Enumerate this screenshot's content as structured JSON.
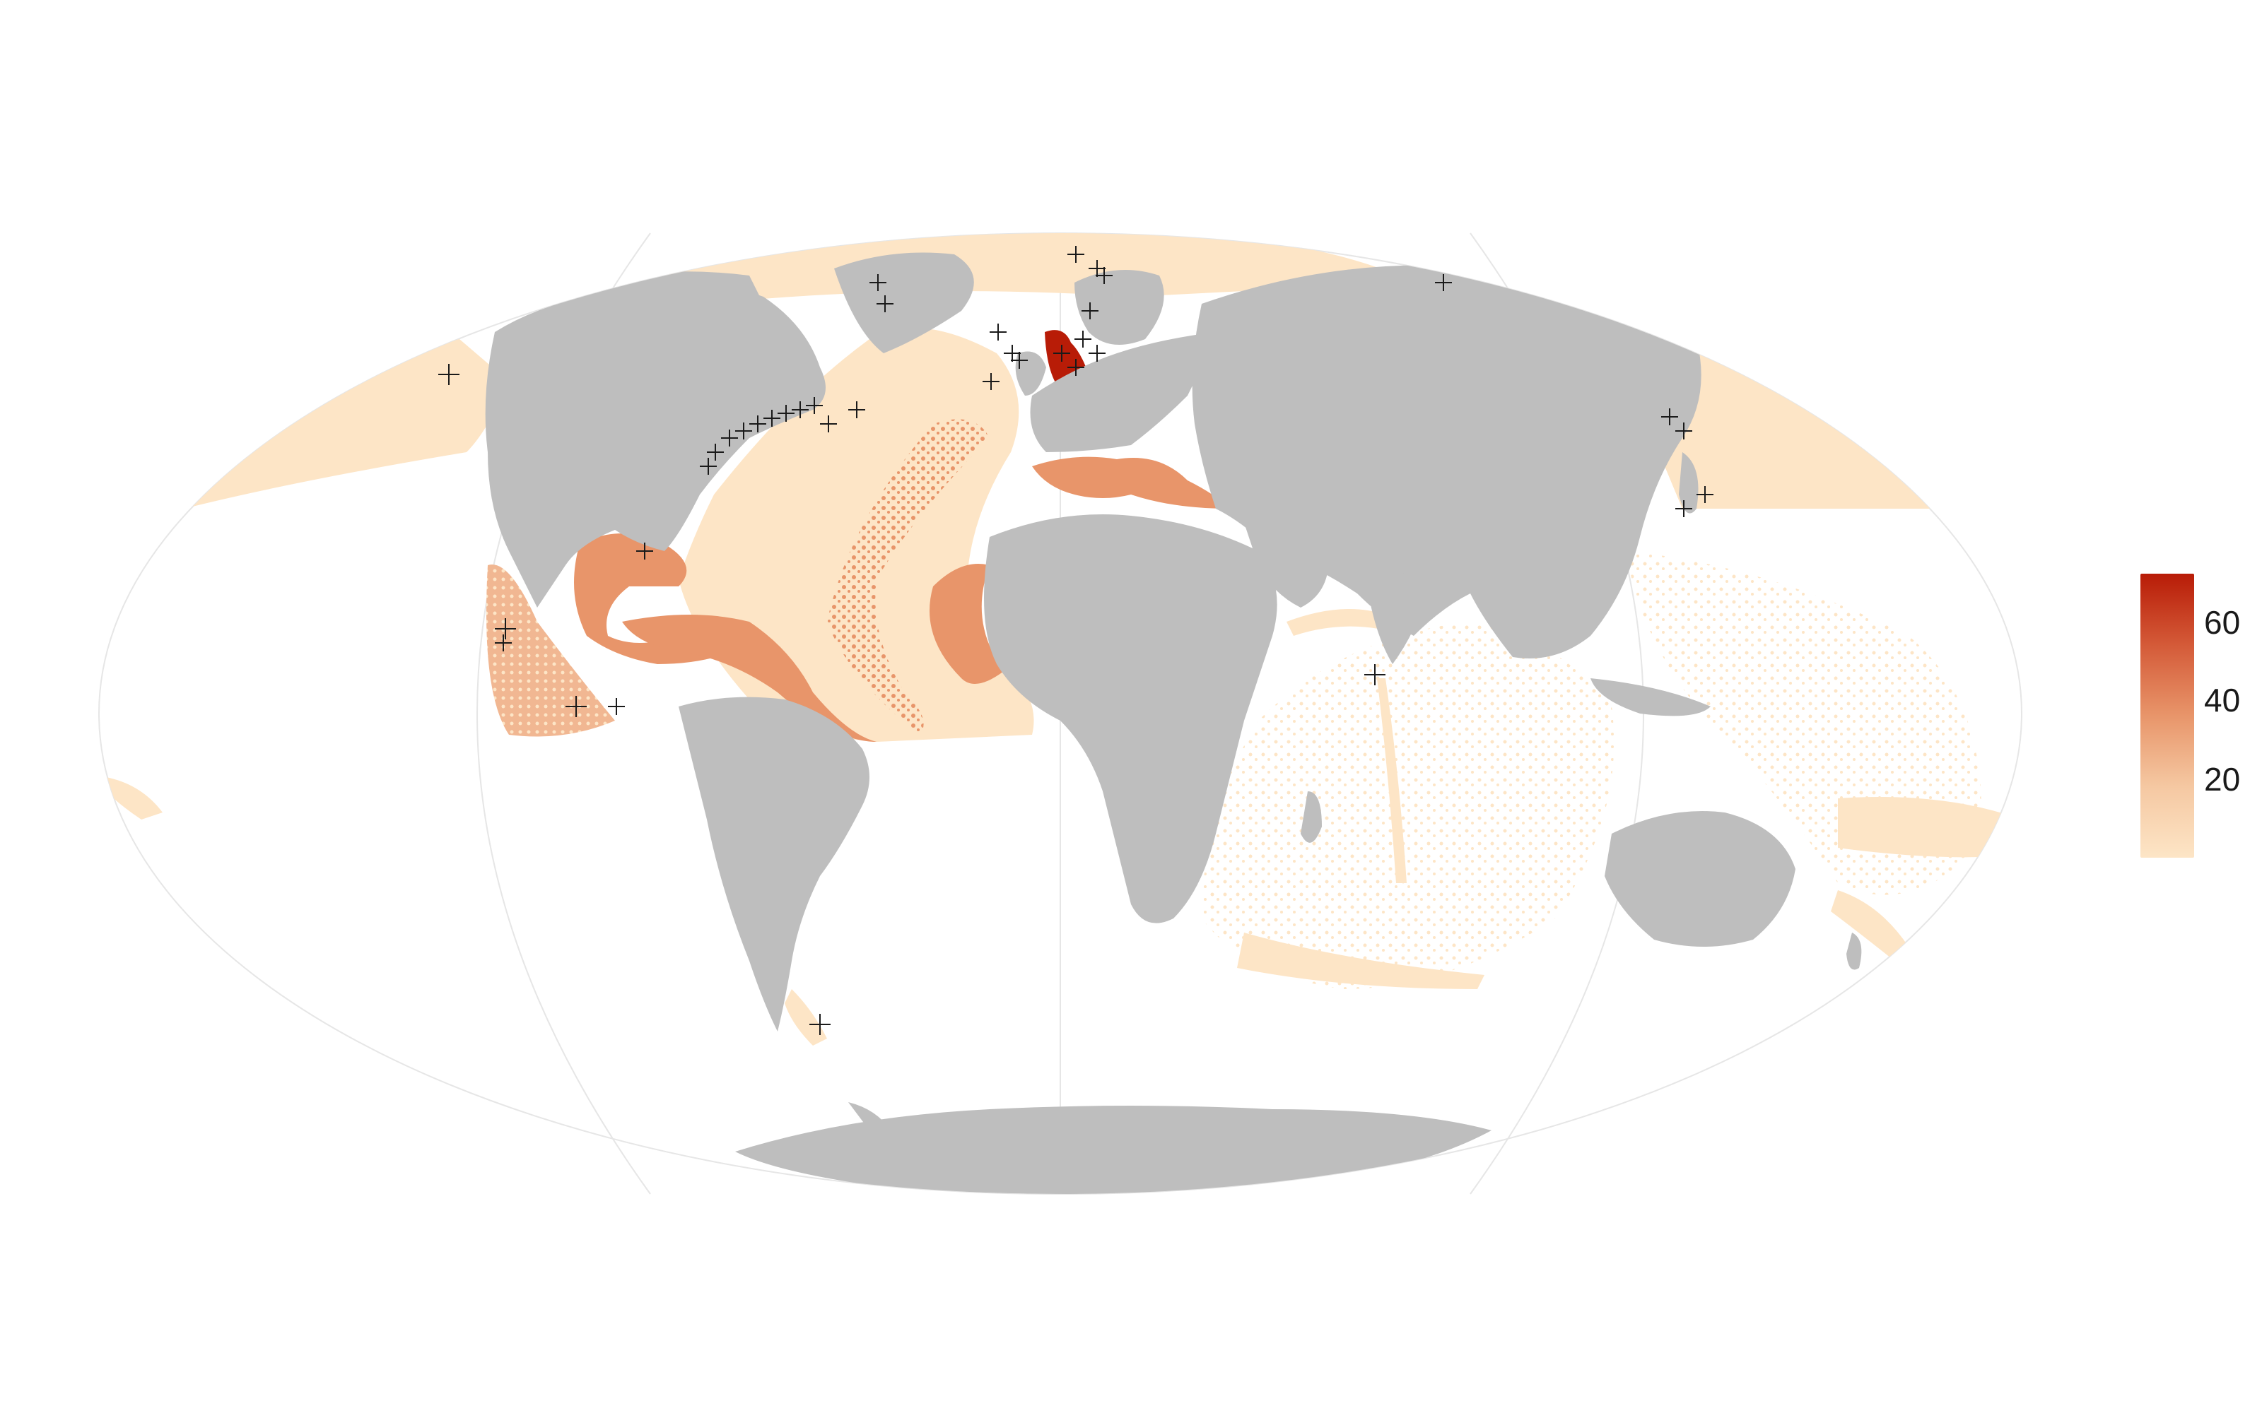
{
  "map": {
    "projection": "mollweide",
    "land_color": "#bebebe",
    "background": "#ffffff",
    "graticule_color": "#e6e6e6",
    "marker_symbol": "+",
    "marker_color": "#1a1a1a"
  },
  "legend": {
    "title": "",
    "ticks": [
      "60",
      "40",
      "20"
    ],
    "value_range": [
      1,
      72
    ],
    "colors": {
      "low": "#fde5c6",
      "mid": "#e8956a",
      "high": "#b81c07"
    }
  },
  "regions": [
    {
      "name": "north-sea",
      "level": 72
    },
    {
      "name": "mediterranean",
      "level": 32
    },
    {
      "name": "gulf-of-mexico",
      "level": 30
    },
    {
      "name": "mid-atlantic-ridge",
      "level": 28
    },
    {
      "name": "north-atlantic-basin",
      "level": 8
    },
    {
      "name": "east-pacific-central-america",
      "level": 22
    },
    {
      "name": "north-pacific",
      "level": 4
    },
    {
      "name": "arctic",
      "level": 4
    },
    {
      "name": "indian-ocean",
      "level": 3
    },
    {
      "name": "west-pacific",
      "level": 3
    }
  ]
}
